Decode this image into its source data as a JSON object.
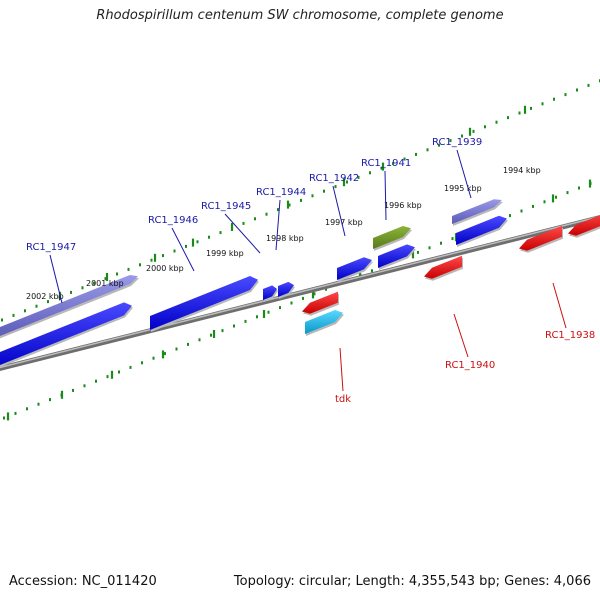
{
  "title": "Rhodospirillum centenum SW chromosome, complete genome",
  "footer": {
    "accession": "Accession: NC_011420",
    "topology": "Topology: circular; Length: 4,355,543 bp; Genes: 4,066"
  },
  "scale_labels": [
    "2002 kbp",
    "2001 kbp",
    "2000 kbp",
    "1999 kbp",
    "1998 kbp",
    "1997 kbp",
    "1996 kbp",
    "1995 kbp",
    "1994 kbp"
  ],
  "gene_labels": {
    "forward": [
      "RC1_1947",
      "RC1_1946",
      "RC1_1945",
      "RC1_1944",
      "RC1_1942",
      "RC1_1941",
      "RC1_1939"
    ],
    "reverse": [
      "tdk",
      "RC1_1940",
      "RC1_1938"
    ]
  },
  "colors": {
    "forward_gene": "#1010e0",
    "reverse_gene": "#e01010",
    "rna_gene": "#6a6ad0",
    "olive_gene": "#6b8e23",
    "cyan_gene": "#10b8e8",
    "backbone": "#888888",
    "scale_ticks": "#1a8a1a"
  }
}
